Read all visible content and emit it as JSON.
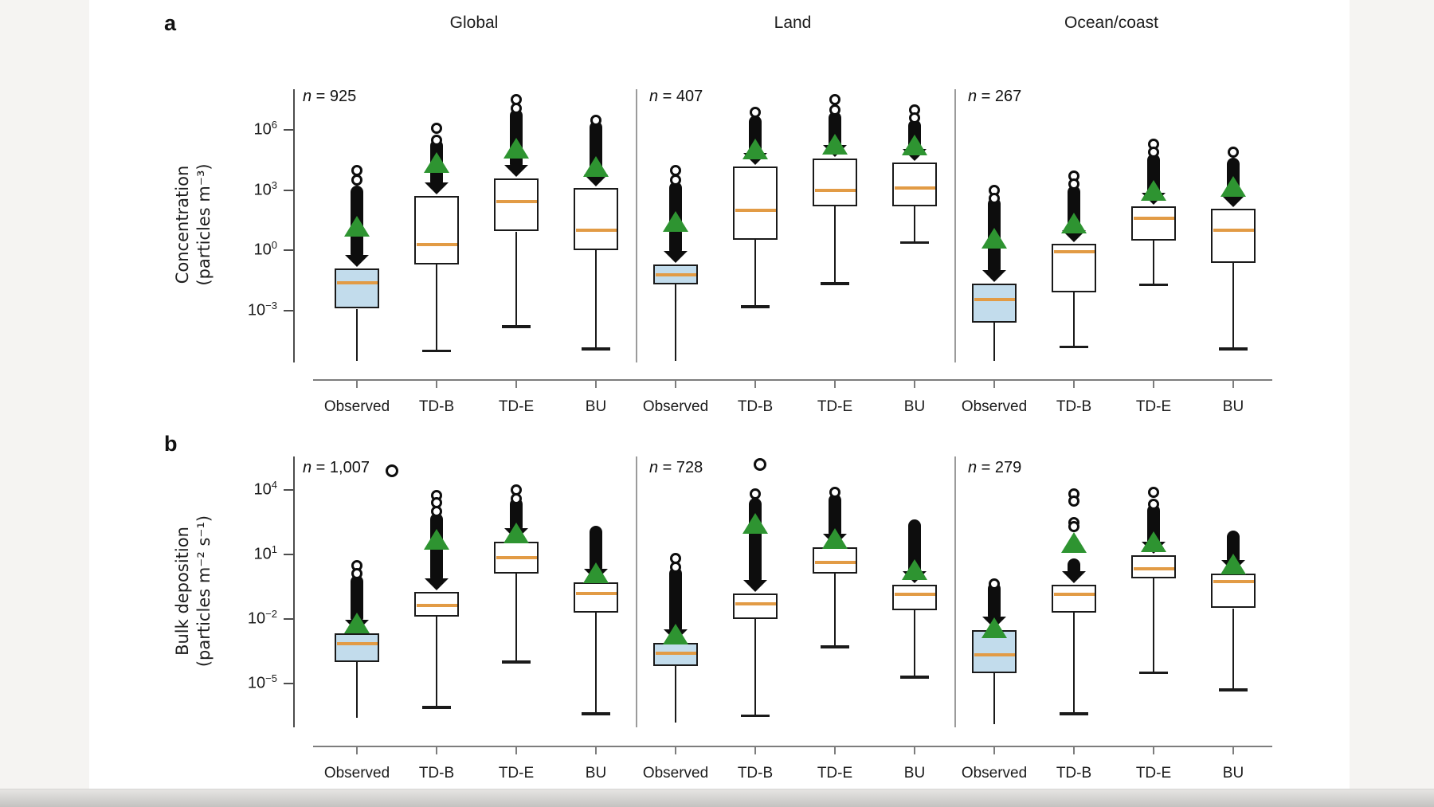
{
  "figure": {
    "panel_letters": [
      "a",
      "b"
    ],
    "column_titles": [
      "Global",
      "Land",
      "Ocean/coast"
    ],
    "category_labels": [
      "Observed",
      "TD-B",
      "TD-E",
      "BU"
    ],
    "colors": {
      "observed_box_fill": "#c2dcec",
      "model_box_fill": "#ffffff",
      "median": "#e29b45",
      "mean_triangle": "#2e9431",
      "outlier_black": "#0d0d0d",
      "box_border": "#1a1a1a",
      "axis": "#4d4d4d",
      "x_axis": "#7d7d7d",
      "separator": "#9b9b9b"
    }
  },
  "chart_data": [
    {
      "id": "a",
      "panel_letter": "a",
      "type": "boxplot",
      "yscale": "log10",
      "ylabel_lines": [
        "Concentration",
        "(particles m⁻³)"
      ],
      "ytick_exponents": [
        6,
        3,
        0,
        -3
      ],
      "ylim_log10": [
        -5.6,
        8.0
      ],
      "legend": "off",
      "marker_meanings": {
        "orange_line": "median",
        "green_triangle": "mean",
        "black_column_circles": "outliers",
        "blue_box": "observed data"
      },
      "groups": [
        {
          "title": "Global",
          "n_label": {
            "sym": "n",
            "rest": "= 925"
          },
          "boxes": [
            {
              "label": "Observed",
              "fill": "observed",
              "log10": {
                "whisker_lo": -5.5,
                "whisker_capped": false,
                "q1": -2.9,
                "median": -1.6,
                "q3": -0.9,
                "mean": 1.2,
                "outlier_col_top": 3.0,
                "outlier_circles": [
                  4.0,
                  3.5
                ]
              }
            },
            {
              "label": "TD-B",
              "fill": "model",
              "log10": {
                "whisker_lo": -5.0,
                "whisker_capped": true,
                "q1": -0.7,
                "median": 0.3,
                "q3": 2.7,
                "mean": 4.4,
                "outlier_col_top": 5.3,
                "outlier_circles": [
                  6.1,
                  5.5
                ]
              }
            },
            {
              "label": "TD-E",
              "fill": "model",
              "log10": {
                "whisker_lo": -3.8,
                "whisker_capped": true,
                "q1": 0.95,
                "median": 2.45,
                "q3": 3.6,
                "mean": 5.1,
                "outlier_col_top": 6.8,
                "outlier_circles": [
                  7.5,
                  7.1
                ]
              }
            },
            {
              "label": "BU",
              "fill": "model",
              "log10": {
                "whisker_lo": -4.9,
                "whisker_capped": true,
                "q1": 0.0,
                "median": 1.0,
                "q3": 3.1,
                "mean": 4.2,
                "outlier_col_top": 6.2,
                "outlier_circles": [
                  6.5
                ]
              }
            }
          ]
        },
        {
          "title": "Land",
          "n_label": {
            "sym": "n",
            "rest": "= 407"
          },
          "boxes": [
            {
              "label": "Observed",
              "fill": "observed",
              "log10": {
                "whisker_lo": -5.5,
                "whisker_capped": false,
                "q1": -1.7,
                "median": -1.2,
                "q3": -0.7,
                "mean": 1.45,
                "outlier_col_top": 3.2,
                "outlier_circles": [
                  4.0,
                  3.5
                ]
              }
            },
            {
              "label": "TD-B",
              "fill": "model",
              "log10": {
                "whisker_lo": -2.8,
                "whisker_capped": true,
                "q1": 0.55,
                "median": 2.0,
                "q3": 4.2,
                "mean": 5.05,
                "outlier_col_top": 6.5,
                "outlier_circles": [
                  6.9
                ]
              }
            },
            {
              "label": "TD-E",
              "fill": "model",
              "log10": {
                "whisker_lo": -1.65,
                "whisker_capped": true,
                "q1": 2.2,
                "median": 3.0,
                "q3": 4.6,
                "mean": 5.3,
                "outlier_col_top": 6.7,
                "outlier_circles": [
                  7.5,
                  7.0
                ]
              }
            },
            {
              "label": "BU",
              "fill": "model",
              "log10": {
                "whisker_lo": 0.4,
                "whisker_capped": true,
                "q1": 2.2,
                "median": 3.1,
                "q3": 4.4,
                "mean": 5.25,
                "outlier_col_top": 6.3,
                "outlier_circles": [
                  7.0,
                  6.6
                ]
              }
            }
          ]
        },
        {
          "title": "Ocean/coast",
          "n_label": {
            "sym": "n",
            "rest": "= 267"
          },
          "boxes": [
            {
              "label": "Observed",
              "fill": "observed",
              "log10": {
                "whisker_lo": -5.5,
                "whisker_capped": false,
                "q1": -3.6,
                "median": -2.45,
                "q3": -1.65,
                "mean": 0.6,
                "outlier_col_top": 2.4,
                "outlier_circles": [
                  3.0,
                  2.6
                ]
              }
            },
            {
              "label": "TD-B",
              "fill": "model",
              "log10": {
                "whisker_lo": -4.8,
                "whisker_capped": true,
                "q1": -2.1,
                "median": -0.05,
                "q3": 0.35,
                "mean": 1.35,
                "outlier_col_top": 3.0,
                "outlier_circles": [
                  3.7,
                  3.3
                ]
              }
            },
            {
              "label": "TD-E",
              "fill": "model",
              "log10": {
                "whisker_lo": -1.7,
                "whisker_capped": true,
                "q1": 0.5,
                "median": 1.6,
                "q3": 2.2,
                "mean": 3.0,
                "outlier_col_top": 4.6,
                "outlier_circles": [
                  5.3,
                  4.9
                ]
              }
            },
            {
              "label": "BU",
              "fill": "model",
              "log10": {
                "whisker_lo": -4.9,
                "whisker_capped": true,
                "q1": -0.6,
                "median": 1.0,
                "q3": 2.1,
                "mean": 3.2,
                "outlier_col_top": 4.4,
                "outlier_circles": [
                  4.9
                ]
              }
            }
          ]
        }
      ]
    },
    {
      "id": "b",
      "panel_letter": "b",
      "type": "boxplot",
      "yscale": "log10",
      "ylabel_lines": [
        "Bulk deposition",
        "(particles m⁻² s⁻¹)"
      ],
      "ytick_exponents": [
        4,
        1,
        -2,
        -5
      ],
      "ylim_log10": [
        -7.0,
        5.6
      ],
      "legend": "off",
      "groups": [
        {
          "title": "Global",
          "n_label": {
            "sym": "n",
            "rest": "= 1,007"
          },
          "extra_outlier_log10": 4.9,
          "boxes": [
            {
              "label": "Observed",
              "fill": "observed",
              "log10": {
                "whisker_lo": -6.6,
                "whisker_capped": false,
                "q1": -4.0,
                "median": -3.15,
                "q3": -2.65,
                "mean": -2.2,
                "outlier_col_top": -0.2,
                "outlier_circles": [
                  0.5,
                  0.1
                ]
              }
            },
            {
              "label": "TD-B",
              "fill": "model",
              "log10": {
                "whisker_lo": -6.1,
                "whisker_capped": true,
                "q1": -1.9,
                "median": -1.35,
                "q3": -0.75,
                "mean": 1.7,
                "outlier_col_top": 2.7,
                "outlier_circles": [
                  3.75,
                  3.4,
                  3.0
                ]
              }
            },
            {
              "label": "TD-E",
              "fill": "model",
              "log10": {
                "whisker_lo": -4.0,
                "whisker_capped": true,
                "q1": 0.1,
                "median": 0.85,
                "q3": 1.6,
                "mean": 2.0,
                "outlier_col_top": 3.4,
                "outlier_circles": [
                  4.0,
                  3.6
                ]
              }
            },
            {
              "label": "BU",
              "fill": "model",
              "log10": {
                "whisker_lo": -6.4,
                "whisker_capped": true,
                "q1": -1.7,
                "median": -0.8,
                "q3": -0.3,
                "mean": 0.15,
                "outlier_col_top": 2.1,
                "outlier_circles": []
              }
            }
          ]
        },
        {
          "title": "Land",
          "n_label": {
            "sym": "n",
            "rest": "= 728"
          },
          "extra_outlier_log10": 5.2,
          "boxes": [
            {
              "label": "Observed",
              "fill": "observed",
              "log10": {
                "whisker_lo": -6.8,
                "whisker_capped": false,
                "q1": -4.2,
                "median": -3.6,
                "q3": -3.1,
                "mean": -2.7,
                "outlier_col_top": 0.2,
                "outlier_circles": [
                  0.8,
                  0.4
                ]
              }
            },
            {
              "label": "TD-B",
              "fill": "model",
              "log10": {
                "whisker_lo": -6.5,
                "whisker_capped": true,
                "q1": -2.0,
                "median": -1.3,
                "q3": -0.8,
                "mean": 2.45,
                "outlier_col_top": 3.4,
                "outlier_circles": [
                  3.8
                ]
              }
            },
            {
              "label": "TD-E",
              "fill": "model",
              "log10": {
                "whisker_lo": -3.3,
                "whisker_capped": true,
                "q1": 0.1,
                "median": 0.65,
                "q3": 1.35,
                "mean": 1.75,
                "outlier_col_top": 3.6,
                "outlier_circles": [
                  3.9
                ]
              }
            },
            {
              "label": "BU",
              "fill": "model",
              "log10": {
                "whisker_lo": -4.7,
                "whisker_capped": true,
                "q1": -1.6,
                "median": -0.85,
                "q3": -0.4,
                "mean": 0.3,
                "outlier_col_top": 2.4,
                "outlier_circles": []
              }
            }
          ]
        },
        {
          "title": "Ocean/coast",
          "n_label": {
            "sym": "n",
            "rest": "= 279"
          },
          "extra_outlier_log10": null,
          "boxes": [
            {
              "label": "Observed",
              "fill": "observed",
              "log10": {
                "whisker_lo": -6.9,
                "whisker_capped": false,
                "q1": -4.5,
                "median": -3.65,
                "q3": -2.5,
                "mean": -2.4,
                "outlier_col_top": -0.5,
                "outlier_circles": [
                  -0.35
                ]
              }
            },
            {
              "label": "TD-B",
              "fill": "model",
              "log10": {
                "whisker_lo": -6.4,
                "whisker_capped": true,
                "q1": -1.7,
                "median": -0.85,
                "q3": -0.4,
                "mean": 1.55,
                "outlier_col_top": 0.6,
                "outlier_circles": [
                  3.8,
                  3.5,
                  2.5,
                  2.3
                ]
              }
            },
            {
              "label": "TD-E",
              "fill": "model",
              "log10": {
                "whisker_lo": -4.5,
                "whisker_capped": true,
                "q1": -0.1,
                "median": 0.35,
                "q3": 0.95,
                "mean": 1.6,
                "outlier_col_top": 3.1,
                "outlier_circles": [
                  3.9,
                  3.35
                ]
              }
            },
            {
              "label": "BU",
              "fill": "model",
              "log10": {
                "whisker_lo": -5.3,
                "whisker_capped": true,
                "q1": -1.5,
                "median": -0.25,
                "q3": 0.1,
                "mean": 0.55,
                "outlier_col_top": 1.9,
                "outlier_circles": []
              }
            }
          ]
        }
      ]
    }
  ]
}
